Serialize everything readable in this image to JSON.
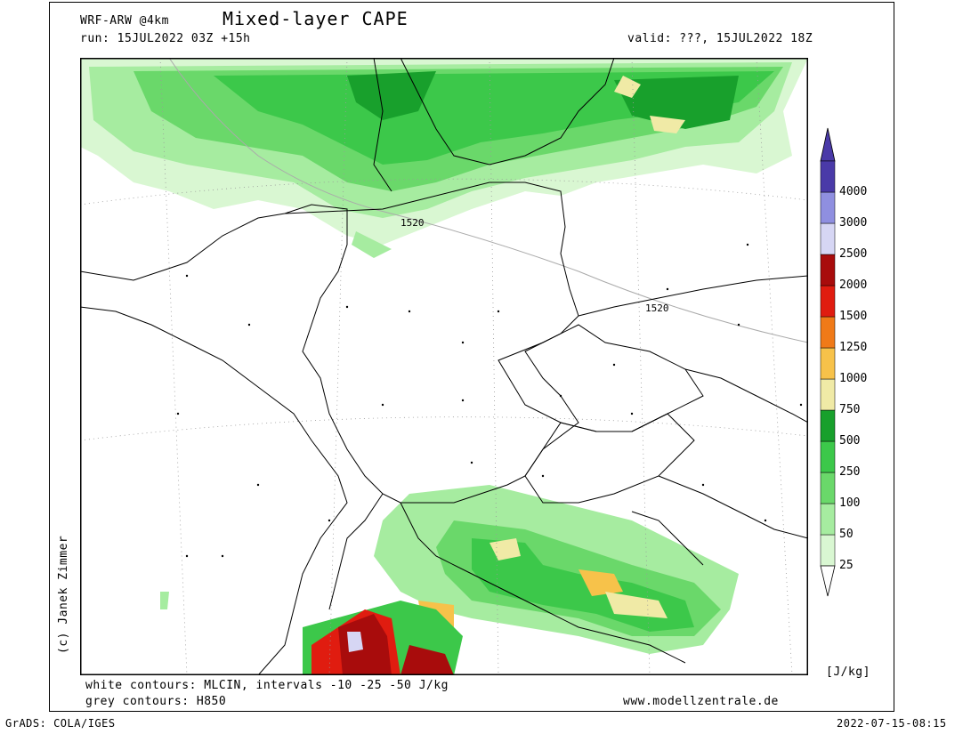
{
  "header": {
    "model": "WRF-ARW @4km",
    "title": "Mixed-layer CAPE",
    "run": "run: 15JUL2022 03Z +15h",
    "valid": "valid: ???, 15JUL2022 18Z"
  },
  "map": {
    "contour_labels": [
      "1520",
      "1520"
    ]
  },
  "colorbar": {
    "unit": "[J/kg]",
    "levels": [
      {
        "label": "25",
        "color": "#d9f7d2"
      },
      {
        "label": "50",
        "color": "#a6eca0"
      },
      {
        "label": "100",
        "color": "#6ad86a"
      },
      {
        "label": "250",
        "color": "#3cc84a"
      },
      {
        "label": "500",
        "color": "#18a02c"
      },
      {
        "label": "750",
        "color": "#f0eaa6"
      },
      {
        "label": "1000",
        "color": "#f7c24a"
      },
      {
        "label": "1250",
        "color": "#f07a18"
      },
      {
        "label": "1500",
        "color": "#e01c10"
      },
      {
        "label": "2000",
        "color": "#a80c0c"
      },
      {
        "label": "2500",
        "color": "#d6d6f4"
      },
      {
        "label": "3000",
        "color": "#8f8fe0"
      },
      {
        "label": "4000",
        "color": "#4a3aa8"
      }
    ],
    "min_color": "#ffffff",
    "max_color": "#4a3aa8"
  },
  "footer": {
    "note1": "white contours: MLCIN, intervals -10 -25 -50 J/kg",
    "note2": "grey contours: H850",
    "website": "www.modellzentrale.de",
    "credit": "(c) Janek Zimmer",
    "software": "GrADS: COLA/IGES",
    "timestamp": "2022-07-15-08:15"
  }
}
